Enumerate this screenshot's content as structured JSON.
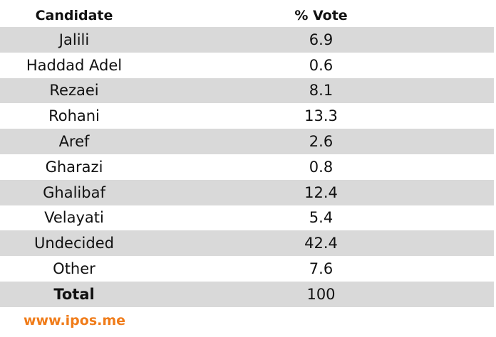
{
  "chart_data": {
    "type": "table",
    "columns": [
      "Candidate",
      "% Vote"
    ],
    "rows": [
      {
        "candidate": "Jalili",
        "vote": "6.9"
      },
      {
        "candidate": "Haddad Adel",
        "vote": "0.6"
      },
      {
        "candidate": "Rezaei",
        "vote": "8.1"
      },
      {
        "candidate": "Rohani",
        "vote": "13.3"
      },
      {
        "candidate": "Aref",
        "vote": "2.6"
      },
      {
        "candidate": "Gharazi",
        "vote": "0.8"
      },
      {
        "candidate": "Ghalibaf",
        "vote": "12.4"
      },
      {
        "candidate": "Velayati",
        "vote": "5.4"
      },
      {
        "candidate": "Undecided",
        "vote": "42.4"
      },
      {
        "candidate": "Other",
        "vote": "7.6"
      },
      {
        "candidate": "Total",
        "vote": "100"
      }
    ],
    "source": "www.ipos.me"
  },
  "colors": {
    "stripe": "#d9d9d9",
    "source_text": "#f07c1a"
  }
}
